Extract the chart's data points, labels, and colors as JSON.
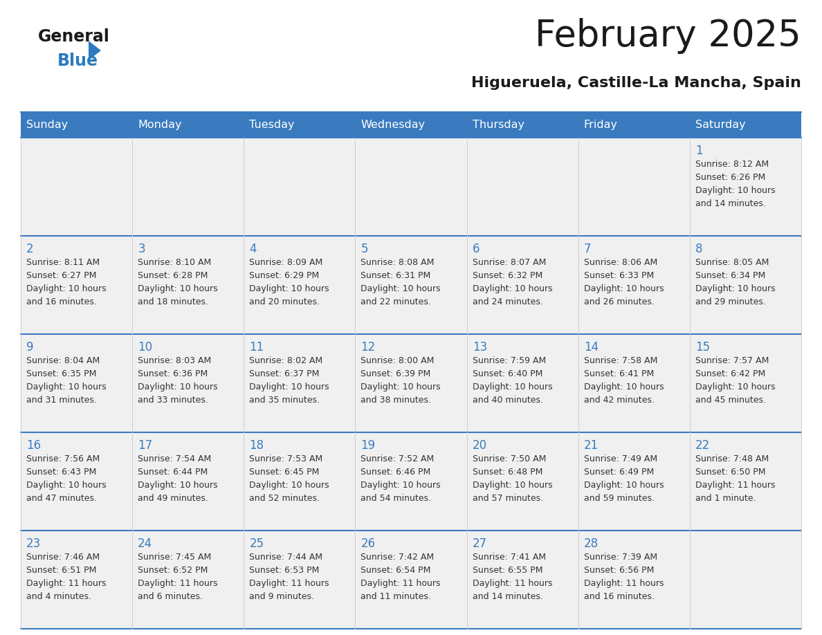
{
  "title": "February 2025",
  "subtitle": "Higueruela, Castille-La Mancha, Spain",
  "header_bg": "#3a7bbf",
  "header_text": "#ffffff",
  "day_names": [
    "Sunday",
    "Monday",
    "Tuesday",
    "Wednesday",
    "Thursday",
    "Friday",
    "Saturday"
  ],
  "cell_bg": "#f0f0f0",
  "date_color": "#3a7bbf",
  "text_color": "#333333",
  "border_color": "#3a7bbf",
  "logo_color_general": "#1a1a1a",
  "logo_color_blue": "#2a7bbf",
  "logo_triangle_color": "#2a7bbf",
  "days": [
    {
      "day": 1,
      "col": 6,
      "row": 0,
      "sunrise": "8:12 AM",
      "sunset": "6:26 PM",
      "daylight": "10 hours and 14 minutes"
    },
    {
      "day": 2,
      "col": 0,
      "row": 1,
      "sunrise": "8:11 AM",
      "sunset": "6:27 PM",
      "daylight": "10 hours and 16 minutes"
    },
    {
      "day": 3,
      "col": 1,
      "row": 1,
      "sunrise": "8:10 AM",
      "sunset": "6:28 PM",
      "daylight": "10 hours and 18 minutes"
    },
    {
      "day": 4,
      "col": 2,
      "row": 1,
      "sunrise": "8:09 AM",
      "sunset": "6:29 PM",
      "daylight": "10 hours and 20 minutes"
    },
    {
      "day": 5,
      "col": 3,
      "row": 1,
      "sunrise": "8:08 AM",
      "sunset": "6:31 PM",
      "daylight": "10 hours and 22 minutes"
    },
    {
      "day": 6,
      "col": 4,
      "row": 1,
      "sunrise": "8:07 AM",
      "sunset": "6:32 PM",
      "daylight": "10 hours and 24 minutes"
    },
    {
      "day": 7,
      "col": 5,
      "row": 1,
      "sunrise": "8:06 AM",
      "sunset": "6:33 PM",
      "daylight": "10 hours and 26 minutes"
    },
    {
      "day": 8,
      "col": 6,
      "row": 1,
      "sunrise": "8:05 AM",
      "sunset": "6:34 PM",
      "daylight": "10 hours and 29 minutes"
    },
    {
      "day": 9,
      "col": 0,
      "row": 2,
      "sunrise": "8:04 AM",
      "sunset": "6:35 PM",
      "daylight": "10 hours and 31 minutes"
    },
    {
      "day": 10,
      "col": 1,
      "row": 2,
      "sunrise": "8:03 AM",
      "sunset": "6:36 PM",
      "daylight": "10 hours and 33 minutes"
    },
    {
      "day": 11,
      "col": 2,
      "row": 2,
      "sunrise": "8:02 AM",
      "sunset": "6:37 PM",
      "daylight": "10 hours and 35 minutes"
    },
    {
      "day": 12,
      "col": 3,
      "row": 2,
      "sunrise": "8:00 AM",
      "sunset": "6:39 PM",
      "daylight": "10 hours and 38 minutes"
    },
    {
      "day": 13,
      "col": 4,
      "row": 2,
      "sunrise": "7:59 AM",
      "sunset": "6:40 PM",
      "daylight": "10 hours and 40 minutes"
    },
    {
      "day": 14,
      "col": 5,
      "row": 2,
      "sunrise": "7:58 AM",
      "sunset": "6:41 PM",
      "daylight": "10 hours and 42 minutes"
    },
    {
      "day": 15,
      "col": 6,
      "row": 2,
      "sunrise": "7:57 AM",
      "sunset": "6:42 PM",
      "daylight": "10 hours and 45 minutes"
    },
    {
      "day": 16,
      "col": 0,
      "row": 3,
      "sunrise": "7:56 AM",
      "sunset": "6:43 PM",
      "daylight": "10 hours and 47 minutes"
    },
    {
      "day": 17,
      "col": 1,
      "row": 3,
      "sunrise": "7:54 AM",
      "sunset": "6:44 PM",
      "daylight": "10 hours and 49 minutes"
    },
    {
      "day": 18,
      "col": 2,
      "row": 3,
      "sunrise": "7:53 AM",
      "sunset": "6:45 PM",
      "daylight": "10 hours and 52 minutes"
    },
    {
      "day": 19,
      "col": 3,
      "row": 3,
      "sunrise": "7:52 AM",
      "sunset": "6:46 PM",
      "daylight": "10 hours and 54 minutes"
    },
    {
      "day": 20,
      "col": 4,
      "row": 3,
      "sunrise": "7:50 AM",
      "sunset": "6:48 PM",
      "daylight": "10 hours and 57 minutes"
    },
    {
      "day": 21,
      "col": 5,
      "row": 3,
      "sunrise": "7:49 AM",
      "sunset": "6:49 PM",
      "daylight": "10 hours and 59 minutes"
    },
    {
      "day": 22,
      "col": 6,
      "row": 3,
      "sunrise": "7:48 AM",
      "sunset": "6:50 PM",
      "daylight": "11 hours and 1 minute"
    },
    {
      "day": 23,
      "col": 0,
      "row": 4,
      "sunrise": "7:46 AM",
      "sunset": "6:51 PM",
      "daylight": "11 hours and 4 minutes"
    },
    {
      "day": 24,
      "col": 1,
      "row": 4,
      "sunrise": "7:45 AM",
      "sunset": "6:52 PM",
      "daylight": "11 hours and 6 minutes"
    },
    {
      "day": 25,
      "col": 2,
      "row": 4,
      "sunrise": "7:44 AM",
      "sunset": "6:53 PM",
      "daylight": "11 hours and 9 minutes"
    },
    {
      "day": 26,
      "col": 3,
      "row": 4,
      "sunrise": "7:42 AM",
      "sunset": "6:54 PM",
      "daylight": "11 hours and 11 minutes"
    },
    {
      "day": 27,
      "col": 4,
      "row": 4,
      "sunrise": "7:41 AM",
      "sunset": "6:55 PM",
      "daylight": "11 hours and 14 minutes"
    },
    {
      "day": 28,
      "col": 5,
      "row": 4,
      "sunrise": "7:39 AM",
      "sunset": "6:56 PM",
      "daylight": "11 hours and 16 minutes"
    }
  ]
}
